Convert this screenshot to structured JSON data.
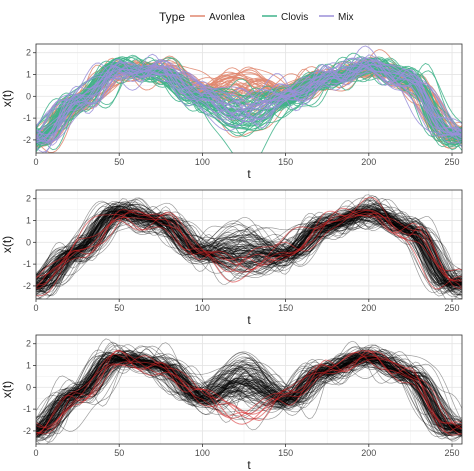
{
  "legend": {
    "title": "Type",
    "placement": "top",
    "items": [
      {
        "label": "Avonlea",
        "color": "#E0876F"
      },
      {
        "label": "Clovis",
        "color": "#3FB38A"
      },
      {
        "label": "Mix",
        "color": "#9A8FD9"
      }
    ]
  },
  "chart_data": [
    {
      "type": "line",
      "title": "",
      "xlabel": "t",
      "ylabel": "x(t)",
      "xlim": [
        0,
        256
      ],
      "ylim": [
        -2.6,
        2.4
      ],
      "xticks": [
        0,
        50,
        100,
        150,
        200,
        250
      ],
      "yticks": [
        -2,
        -1,
        0,
        1,
        2
      ],
      "grid": true,
      "series": [
        {
          "name": "Avonlea",
          "color": "#E0876F",
          "count": 45,
          "mean": [
            [
              0,
              -2.0
            ],
            [
              25,
              -0.3
            ],
            [
              50,
              1.1
            ],
            [
              75,
              1.3
            ],
            [
              100,
              0.2
            ],
            [
              125,
              0.4
            ],
            [
              150,
              0.1
            ],
            [
              175,
              0.9
            ],
            [
              200,
              1.3
            ],
            [
              225,
              0.6
            ],
            [
              250,
              -1.8
            ]
          ]
        },
        {
          "name": "Clovis",
          "color": "#3FB38A",
          "count": 45,
          "mean": [
            [
              0,
              -2.0
            ],
            [
              25,
              -0.2
            ],
            [
              50,
              1.3
            ],
            [
              75,
              1.1
            ],
            [
              100,
              -0.2
            ],
            [
              125,
              -0.8
            ],
            [
              150,
              -0.2
            ],
            [
              175,
              0.8
            ],
            [
              200,
              1.4
            ],
            [
              225,
              0.8
            ],
            [
              250,
              -1.8
            ]
          ]
        },
        {
          "name": "Mix",
          "color": "#9A8FD9",
          "count": 20,
          "mean": [
            [
              0,
              -2.0
            ],
            [
              25,
              -0.3
            ],
            [
              50,
              1.2
            ],
            [
              75,
              1.2
            ],
            [
              100,
              0.0
            ],
            [
              125,
              -1.0
            ],
            [
              150,
              -0.1
            ],
            [
              175,
              0.9
            ],
            [
              200,
              1.4
            ],
            [
              225,
              0.7
            ],
            [
              250,
              -1.8
            ]
          ]
        }
      ]
    },
    {
      "type": "line",
      "title": "",
      "xlabel": "t",
      "ylabel": "x(t)",
      "xlim": [
        0,
        256
      ],
      "ylim": [
        -2.6,
        2.4
      ],
      "xticks": [
        0,
        50,
        100,
        150,
        200,
        250
      ],
      "yticks": [
        -2,
        -1,
        0,
        1,
        2
      ],
      "grid": true,
      "series": [
        {
          "color": "#000000",
          "count": 110,
          "mean": [
            [
              0,
              -2.0
            ],
            [
              25,
              -0.4
            ],
            [
              50,
              1.4
            ],
            [
              75,
              1.0
            ],
            [
              100,
              -0.5
            ],
            [
              125,
              -0.4
            ],
            [
              150,
              -0.6
            ],
            [
              175,
              0.8
            ],
            [
              200,
              1.4
            ],
            [
              225,
              0.6
            ],
            [
              250,
              -1.9
            ]
          ]
        },
        {
          "color": "#D62728",
          "count": 6,
          "mean": [
            [
              0,
              -2.0
            ],
            [
              25,
              -0.5
            ],
            [
              50,
              1.3
            ],
            [
              75,
              0.9
            ],
            [
              100,
              -0.4
            ],
            [
              125,
              -1.3
            ],
            [
              150,
              -0.4
            ],
            [
              175,
              0.9
            ],
            [
              200,
              1.4
            ],
            [
              225,
              0.5
            ],
            [
              250,
              -1.9
            ]
          ]
        }
      ]
    },
    {
      "type": "line",
      "title": "",
      "xlabel": "t",
      "ylabel": "x(t)",
      "xlim": [
        0,
        256
      ],
      "ylim": [
        -2.6,
        2.4
      ],
      "xticks": [
        0,
        50,
        100,
        150,
        200,
        250
      ],
      "yticks": [
        -2,
        -1,
        0,
        1,
        2
      ],
      "grid": true,
      "series": [
        {
          "color": "#000000",
          "count": 110,
          "mean": [
            [
              0,
              -2.0
            ],
            [
              25,
              -0.3
            ],
            [
              50,
              1.4
            ],
            [
              75,
              1.0
            ],
            [
              100,
              -0.5
            ],
            [
              125,
              0.3
            ],
            [
              150,
              -0.6
            ],
            [
              175,
              0.8
            ],
            [
              200,
              1.4
            ],
            [
              225,
              0.6
            ],
            [
              250,
              -1.9
            ]
          ]
        },
        {
          "color": "#D62728",
          "count": 6,
          "mean": [
            [
              0,
              -2.0
            ],
            [
              25,
              -0.5
            ],
            [
              50,
              1.3
            ],
            [
              75,
              0.9
            ],
            [
              100,
              -0.4
            ],
            [
              125,
              -1.2
            ],
            [
              150,
              -0.4
            ],
            [
              175,
              0.9
            ],
            [
              200,
              1.4
            ],
            [
              225,
              0.5
            ],
            [
              250,
              -1.9
            ]
          ]
        }
      ]
    }
  ]
}
